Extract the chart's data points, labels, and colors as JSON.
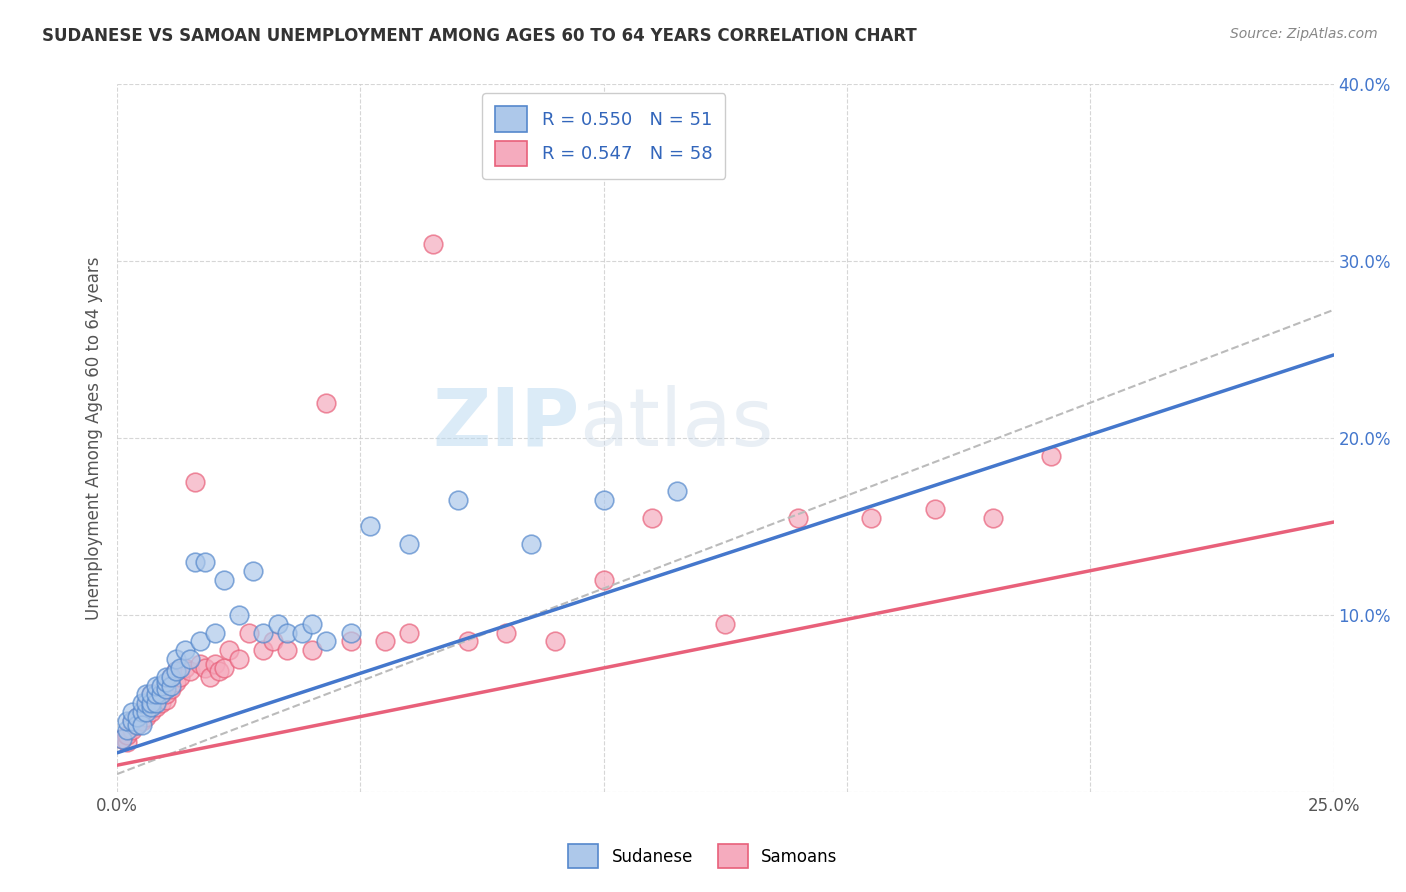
{
  "title": "SUDANESE VS SAMOAN UNEMPLOYMENT AMONG AGES 60 TO 64 YEARS CORRELATION CHART",
  "source": "Source: ZipAtlas.com",
  "ylabel": "Unemployment Among Ages 60 to 64 years",
  "xlim": [
    0,
    0.25
  ],
  "ylim": [
    0,
    0.4
  ],
  "sudanese_R": 0.55,
  "sudanese_N": 51,
  "samoan_R": 0.547,
  "samoan_N": 58,
  "sudanese_color": "#adc8ea",
  "samoan_color": "#f5abbe",
  "sudanese_edge_color": "#5588cc",
  "samoan_edge_color": "#e8607a",
  "sudanese_line_color": "#4477cc",
  "samoan_line_color": "#e8607a",
  "trend_line_color": "#bbbbbb",
  "legend_text_color": "#3366bb",
  "watermark_color": "#d6eaf8",
  "sudanese_line_intercept": 0.022,
  "sudanese_line_slope": 0.9,
  "samoan_line_intercept": 0.015,
  "samoan_line_slope": 0.55,
  "dashed_line_intercept": 0.01,
  "dashed_line_slope": 1.05,
  "sudanese_x": [
    0.001,
    0.002,
    0.002,
    0.003,
    0.003,
    0.004,
    0.004,
    0.005,
    0.005,
    0.005,
    0.006,
    0.006,
    0.006,
    0.007,
    0.007,
    0.007,
    0.008,
    0.008,
    0.008,
    0.009,
    0.009,
    0.01,
    0.01,
    0.01,
    0.011,
    0.011,
    0.012,
    0.012,
    0.013,
    0.014,
    0.015,
    0.016,
    0.017,
    0.018,
    0.02,
    0.022,
    0.025,
    0.028,
    0.03,
    0.033,
    0.035,
    0.038,
    0.04,
    0.043,
    0.048,
    0.052,
    0.06,
    0.07,
    0.085,
    0.1,
    0.115
  ],
  "sudanese_y": [
    0.03,
    0.035,
    0.04,
    0.04,
    0.045,
    0.038,
    0.042,
    0.045,
    0.05,
    0.038,
    0.045,
    0.05,
    0.055,
    0.048,
    0.05,
    0.055,
    0.05,
    0.055,
    0.06,
    0.055,
    0.06,
    0.058,
    0.062,
    0.065,
    0.06,
    0.065,
    0.068,
    0.075,
    0.07,
    0.08,
    0.075,
    0.13,
    0.085,
    0.13,
    0.09,
    0.12,
    0.1,
    0.125,
    0.09,
    0.095,
    0.09,
    0.09,
    0.095,
    0.085,
    0.09,
    0.15,
    0.14,
    0.165,
    0.14,
    0.165,
    0.17
  ],
  "samoan_x": [
    0.001,
    0.002,
    0.002,
    0.003,
    0.003,
    0.004,
    0.004,
    0.005,
    0.005,
    0.006,
    0.006,
    0.007,
    0.007,
    0.007,
    0.008,
    0.008,
    0.009,
    0.009,
    0.01,
    0.01,
    0.01,
    0.011,
    0.011,
    0.012,
    0.012,
    0.013,
    0.014,
    0.015,
    0.016,
    0.017,
    0.018,
    0.019,
    0.02,
    0.021,
    0.022,
    0.023,
    0.025,
    0.027,
    0.03,
    0.032,
    0.035,
    0.04,
    0.043,
    0.048,
    0.055,
    0.06,
    0.065,
    0.072,
    0.08,
    0.09,
    0.1,
    0.11,
    0.125,
    0.14,
    0.155,
    0.168,
    0.18,
    0.192
  ],
  "samoan_y": [
    0.03,
    0.028,
    0.032,
    0.035,
    0.04,
    0.038,
    0.042,
    0.04,
    0.045,
    0.042,
    0.048,
    0.045,
    0.05,
    0.055,
    0.048,
    0.052,
    0.05,
    0.055,
    0.052,
    0.055,
    0.06,
    0.058,
    0.065,
    0.062,
    0.068,
    0.065,
    0.07,
    0.068,
    0.175,
    0.072,
    0.07,
    0.065,
    0.072,
    0.068,
    0.07,
    0.08,
    0.075,
    0.09,
    0.08,
    0.085,
    0.08,
    0.08,
    0.22,
    0.085,
    0.085,
    0.09,
    0.31,
    0.085,
    0.09,
    0.085,
    0.12,
    0.155,
    0.095,
    0.155,
    0.155,
    0.16,
    0.155,
    0.19
  ]
}
